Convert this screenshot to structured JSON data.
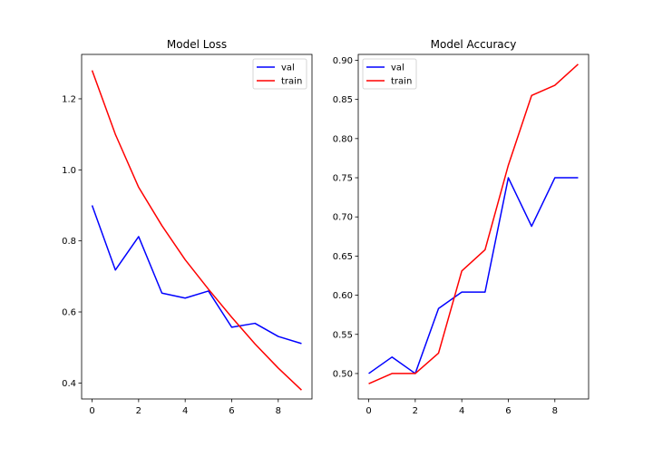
{
  "chart_data": [
    {
      "type": "line",
      "title": "Model Loss",
      "xlabel": "",
      "ylabel": "",
      "x": [
        0,
        1,
        2,
        3,
        4,
        5,
        6,
        7,
        8,
        9
      ],
      "xlim": [
        -0.45,
        9.45
      ],
      "ylim": [
        0.355,
        1.325
      ],
      "xticks": [
        0,
        2,
        4,
        6,
        8
      ],
      "xtick_labels": [
        "0",
        "2",
        "4",
        "6",
        "8"
      ],
      "yticks": [
        0.4,
        0.6,
        0.8,
        1.0,
        1.2
      ],
      "ytick_labels": [
        "0.4",
        "0.6",
        "0.8",
        "1.0",
        "1.2"
      ],
      "grid": false,
      "legend_position": "top-right",
      "series": [
        {
          "name": "val",
          "color": "#0000ff",
          "values": [
            0.9,
            0.718,
            0.812,
            0.653,
            0.639,
            0.659,
            0.557,
            0.568,
            0.531,
            0.511
          ]
        },
        {
          "name": "train",
          "color": "#ff0000",
          "values": [
            1.28,
            1.1,
            0.951,
            0.843,
            0.747,
            0.664,
            0.585,
            0.51,
            0.442,
            0.38
          ]
        }
      ]
    },
    {
      "type": "line",
      "title": "Model Accuracy",
      "xlabel": "",
      "ylabel": "",
      "x": [
        0,
        1,
        2,
        3,
        4,
        5,
        6,
        7,
        8,
        9
      ],
      "xlim": [
        -0.45,
        9.45
      ],
      "ylim": [
        0.4675,
        0.9075
      ],
      "xticks": [
        0,
        2,
        4,
        6,
        8
      ],
      "xtick_labels": [
        "0",
        "2",
        "4",
        "6",
        "8"
      ],
      "yticks": [
        0.5,
        0.55,
        0.6,
        0.65,
        0.7,
        0.75,
        0.8,
        0.85,
        0.9
      ],
      "ytick_labels": [
        "0.50",
        "0.55",
        "0.60",
        "0.65",
        "0.70",
        "0.75",
        "0.80",
        "0.85",
        "0.90"
      ],
      "grid": false,
      "legend_position": "top-left",
      "series": [
        {
          "name": "val",
          "color": "#0000ff",
          "values": [
            0.5,
            0.521,
            0.5,
            0.583,
            0.604,
            0.604,
            0.75,
            0.688,
            0.75,
            0.75
          ]
        },
        {
          "name": "train",
          "color": "#ff0000",
          "values": [
            0.487,
            0.5,
            0.5,
            0.526,
            0.631,
            0.658,
            0.766,
            0.855,
            0.868,
            0.895
          ]
        }
      ]
    }
  ]
}
